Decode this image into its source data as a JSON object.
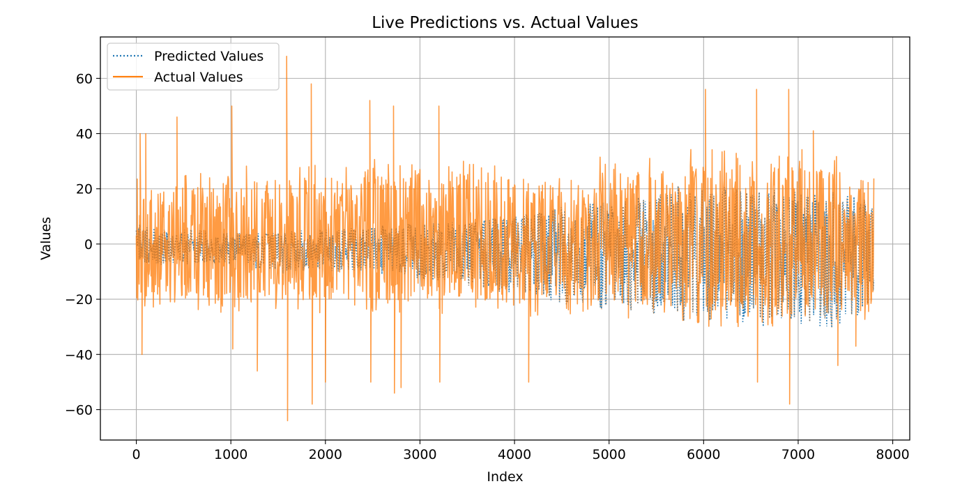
{
  "chart_data": {
    "type": "line",
    "title": "Live Predictions vs. Actual Values",
    "xlabel": "Index",
    "ylabel": "Values",
    "xlim": [
      -380,
      8180
    ],
    "ylim": [
      -71,
      75
    ],
    "x_ticks": [
      0,
      1000,
      2000,
      3000,
      4000,
      5000,
      6000,
      7000,
      8000
    ],
    "x_tick_labels": [
      "0",
      "1000",
      "2000",
      "3000",
      "4000",
      "5000",
      "6000",
      "7000",
      "8000"
    ],
    "y_ticks": [
      -60,
      -40,
      -20,
      0,
      20,
      40,
      60
    ],
    "y_tick_labels": [
      "−60",
      "−40",
      "−20",
      "0",
      "20",
      "40",
      "60"
    ],
    "grid": true,
    "legend_position": "top-left",
    "series": [
      {
        "name": "Predicted Values",
        "style": "dotted",
        "color": "#1f77b4",
        "envelope_x": [
          0,
          500,
          1000,
          1500,
          2000,
          2500,
          3000,
          3500,
          4000,
          4500,
          5000,
          5500,
          6000,
          6500,
          7000,
          7500,
          7800
        ],
        "envelope_high": [
          7,
          5,
          4,
          4,
          5,
          6,
          7,
          8,
          10,
          13,
          14,
          17,
          21,
          19,
          18,
          17,
          14
        ],
        "envelope_low": [
          -7,
          -7,
          -7,
          -10,
          -9,
          -10,
          -12,
          -14,
          -17,
          -20,
          -22,
          -24,
          -27,
          -28,
          -29,
          -28,
          -22
        ],
        "peaks": [
          {
            "x": 5730,
            "y": 21
          },
          {
            "x": 6060,
            "y": 16
          },
          {
            "x": 7030,
            "y": 18
          },
          {
            "x": 7230,
            "y": -30
          },
          {
            "x": 7440,
            "y": -29
          },
          {
            "x": 7590,
            "y": 17
          },
          {
            "x": 7700,
            "y": 16
          }
        ]
      },
      {
        "name": "Actual Values",
        "style": "solid",
        "color": "#ff7f0e",
        "envelope_x": [
          0,
          500,
          1000,
          1500,
          2000,
          2500,
          3000,
          3500,
          4000,
          4500,
          5000,
          5500,
          6000,
          6500,
          7000,
          7500,
          7800
        ],
        "envelope_high": [
          20,
          20,
          22,
          24,
          24,
          25,
          25,
          24,
          24,
          24,
          26,
          26,
          28,
          28,
          28,
          26,
          24
        ],
        "envelope_low": [
          -20,
          -20,
          -20,
          -20,
          -20,
          -20,
          -21,
          -21,
          -21,
          -21,
          -22,
          -22,
          -24,
          -24,
          -24,
          -22,
          -22
        ],
        "peaks": [
          {
            "x": 40,
            "y": 40
          },
          {
            "x": 60,
            "y": -40
          },
          {
            "x": 100,
            "y": 40
          },
          {
            "x": 430,
            "y": 46
          },
          {
            "x": 1010,
            "y": 50
          },
          {
            "x": 1020,
            "y": -38
          },
          {
            "x": 1280,
            "y": -46
          },
          {
            "x": 1590,
            "y": 68
          },
          {
            "x": 1600,
            "y": -64
          },
          {
            "x": 1850,
            "y": 58
          },
          {
            "x": 1860,
            "y": -58
          },
          {
            "x": 2000,
            "y": -50
          },
          {
            "x": 2470,
            "y": 52
          },
          {
            "x": 2480,
            "y": -50
          },
          {
            "x": 2720,
            "y": 50
          },
          {
            "x": 2730,
            "y": -54
          },
          {
            "x": 2800,
            "y": -52
          },
          {
            "x": 3200,
            "y": 50
          },
          {
            "x": 3210,
            "y": -50
          },
          {
            "x": 4150,
            "y": -50
          },
          {
            "x": 6020,
            "y": 56
          },
          {
            "x": 6560,
            "y": 56
          },
          {
            "x": 6570,
            "y": -50
          },
          {
            "x": 6900,
            "y": 56
          },
          {
            "x": 6910,
            "y": -58
          },
          {
            "x": 7160,
            "y": 41
          },
          {
            "x": 7420,
            "y": -44
          },
          {
            "x": 7610,
            "y": -37
          }
        ]
      }
    ]
  }
}
